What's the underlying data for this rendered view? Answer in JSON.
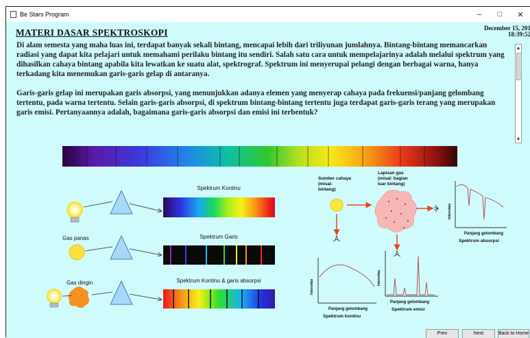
{
  "window": {
    "title": "Be Stars Program",
    "controls": {
      "minimize": "–",
      "maximize": "□",
      "close": "✕"
    }
  },
  "header": {
    "heading": "MATERI DASAR SPEKTROSKOPI",
    "date": "December 15, 201",
    "time": "18:39:52"
  },
  "content": {
    "paragraph1": "Di alam semesta yang maha luas ini, terdapat banyak sekali bintang, mencapai lebih dari triliyunan jumlahnya. Bintang-bintang memancarkan radiasi yang dapat kita pelajari untuk memahami perilaku bintang itu sendiri. Salah satu cara untuk mempelajarinya adalah melalui spektrum yang dihasilkan cahaya bintang apabila kita lewatkan ke suatu alat, spektrograf. Spektrum ini menyerupai pelangi dengan berbagai warna, hanya terkadang kita menemukan garis-garis gelap di antaranya.",
    "paragraph2": "Garis-garis gelap ini merupakan garis absorpsi, yang menunjukkan adanya elemen yang menyerap cahaya pada frekuensi/panjang gelombang tertentu, pada warna tertentu. Selain garis-garis absorpsi, di spektrum bintang-bintang tertentu juga terdapat garis-garis terang yang merupakan garis emisi. Pertanyaannya adalah, bagaimana garis-garis absorpsi dan emisi ini terbentuk?"
  },
  "diagram": {
    "spektrum_kontinu": "Spektrum  Kontinu",
    "gas_panas": "Gas panas",
    "spektrum_garis": "Spektrum  Garis",
    "gas_dingin": "Gas dingin",
    "spektrum_kontinu_absorpsi": "Spektrum  Kontinu & garis absorpsi",
    "sumber_cahaya": [
      "Sumber cahaya",
      "(misal:",
      "bintang)"
    ],
    "lapisan_gas": [
      "Lapisan gas",
      "(misal: bagian",
      "luar bintang)"
    ],
    "intensitas": "Intensitas",
    "panjang_gelombang": "Panjang gelombang",
    "spektrum_absorpsi_caption": "Spektrum absorpsi",
    "spektrum_kontinu_caption": "Spektrum kontinu",
    "spektrum_emisi_caption": "Spektrum emisi"
  },
  "nav": {
    "prev": "Prev",
    "next": "Next",
    "home": "Back to Home"
  },
  "colors": {
    "background": "#cffbfd",
    "bulb": "#f7e83a",
    "gas_cloud": "#f6b8b6",
    "arrow": "#e8431d"
  }
}
